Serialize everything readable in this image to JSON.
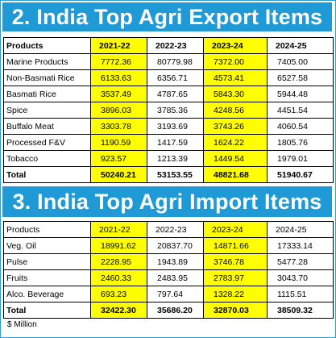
{
  "export_section": {
    "title": "2. India Top Agri Export Items",
    "headers": [
      "Products",
      "2021-22",
      "2022-23",
      "2023-24",
      "2024-25"
    ],
    "rows": [
      [
        "Marine Products",
        "7772.36",
        "80779.98",
        "7372.00",
        "7405.00"
      ],
      [
        "Non-Basmati Rice",
        "6133.63",
        "6356.71",
        "4573.41",
        "6527.58"
      ],
      [
        "Basmati Rice",
        "3537.49",
        "4787.65",
        "5843.30",
        "5944.48"
      ],
      [
        "Spice",
        "3896.03",
        "3785.36",
        "4248.56",
        "4451.54"
      ],
      [
        "Buffalo Meat",
        "3303.78",
        "3193.69",
        "3743.26",
        "4060.54"
      ],
      [
        "Processed F&V",
        "1190.59",
        "1417.59",
        "1624.22",
        "1805.76"
      ],
      [
        "Tobacco",
        "923.57",
        "1213.39",
        "1449.54",
        "1979.01"
      ]
    ],
    "total": [
      "Total",
      "50240.21",
      "53153.55",
      "48821.68",
      "51940.67"
    ]
  },
  "import_section": {
    "title": "3. India Top Agri Import Items",
    "headers": [
      "Products",
      "2021-22",
      "2022-23",
      "2023-24",
      "2024-25"
    ],
    "rows": [
      [
        "Veg. Oil",
        "18991.62",
        "20837.70",
        "14871.66",
        "17333.14"
      ],
      [
        "Pulse",
        "2228.95",
        "1943.89",
        "3746.78",
        "5477.28"
      ],
      [
        "Fruits",
        "2460.33",
        "2483.95",
        "2783.97",
        "3043.70"
      ],
      [
        "Alco. Beverage",
        "693.23",
        "797.64",
        "1328.22",
        "1115.51"
      ]
    ],
    "total": [
      "Total",
      "32422.30",
      "35686.20",
      "32870.03",
      "38509.32"
    ]
  },
  "footnote": "$ Million",
  "colors": {
    "banner": "#1f9ad6",
    "highlight": "#ffff00",
    "border": "#2a9fd6"
  }
}
